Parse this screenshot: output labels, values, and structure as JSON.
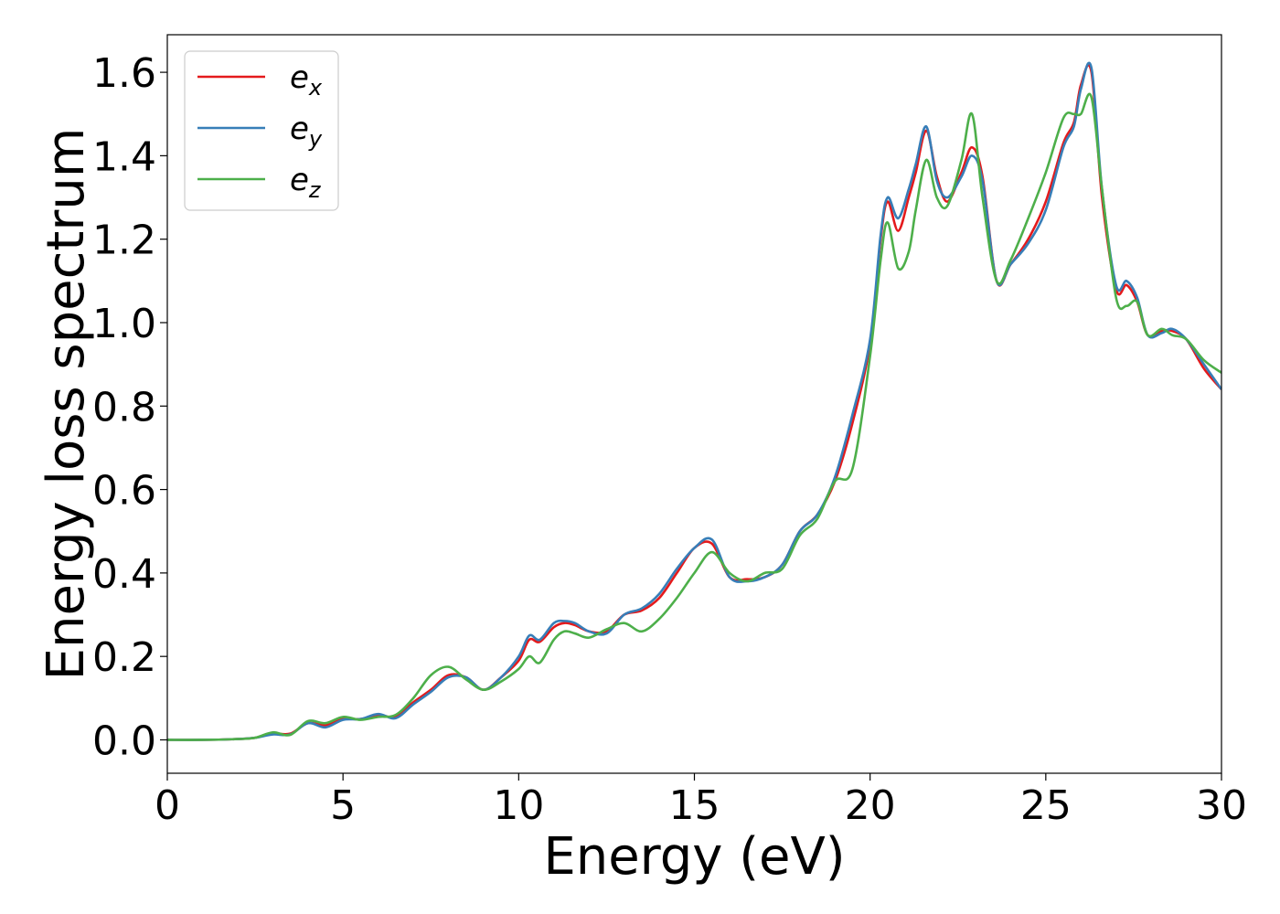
{
  "chart_data": {
    "type": "line",
    "title": "",
    "xlabel": "Energy (eV)",
    "ylabel": "Energy loss spectrum",
    "xlim": [
      0,
      30
    ],
    "ylim": [
      -0.08,
      1.69
    ],
    "xticks": [
      0,
      5,
      10,
      15,
      20,
      25,
      30
    ],
    "yticks": [
      0.0,
      0.2,
      0.4,
      0.6,
      0.8,
      1.0,
      1.2,
      1.4,
      1.6
    ],
    "xtick_labels": [
      "0",
      "5",
      "10",
      "15",
      "20",
      "25",
      "30"
    ],
    "ytick_labels": [
      "0.0",
      "0.2",
      "0.4",
      "0.6",
      "0.8",
      "1.0",
      "1.2",
      "1.4",
      "1.6"
    ],
    "grid": false,
    "legend_position": "top-left",
    "series": [
      {
        "name": "e",
        "subscript": "x",
        "color": "#e41a1c",
        "x": [
          0,
          1,
          2,
          2.5,
          3,
          3.5,
          4,
          4.5,
          5,
          5.5,
          6,
          6.5,
          7,
          7.5,
          8,
          8.5,
          9,
          9.5,
          10,
          10.3,
          10.6,
          11,
          11.3,
          11.6,
          12,
          12.5,
          13,
          13.5,
          14,
          14.5,
          15,
          15.5,
          16,
          16.5,
          17,
          17.5,
          18,
          18.5,
          19,
          19.5,
          20,
          20.3,
          20.5,
          20.8,
          21.1,
          21.3,
          21.6,
          21.9,
          22.2,
          22.6,
          22.9,
          23.2,
          23.6,
          24,
          24.5,
          25,
          25.5,
          25.8,
          26,
          26.3,
          26.6,
          27,
          27.3,
          27.6,
          27.9,
          28.3,
          28.6,
          29,
          29.5,
          30
        ],
        "y": [
          0,
          0,
          0.002,
          0.005,
          0.015,
          0.015,
          0.04,
          0.035,
          0.05,
          0.05,
          0.06,
          0.055,
          0.09,
          0.12,
          0.155,
          0.15,
          0.12,
          0.15,
          0.19,
          0.24,
          0.235,
          0.27,
          0.28,
          0.275,
          0.26,
          0.26,
          0.3,
          0.31,
          0.34,
          0.4,
          0.46,
          0.47,
          0.39,
          0.385,
          0.39,
          0.42,
          0.5,
          0.54,
          0.62,
          0.76,
          0.95,
          1.2,
          1.29,
          1.22,
          1.3,
          1.36,
          1.46,
          1.35,
          1.29,
          1.36,
          1.42,
          1.35,
          1.1,
          1.14,
          1.2,
          1.29,
          1.43,
          1.48,
          1.57,
          1.6,
          1.3,
          1.08,
          1.09,
          1.05,
          0.97,
          0.98,
          0.98,
          0.96,
          0.89,
          0.84
        ]
      },
      {
        "name": "e",
        "subscript": "y",
        "color": "#377eb8",
        "x": [
          0,
          1,
          2,
          2.5,
          3,
          3.5,
          4,
          4.5,
          5,
          5.5,
          6,
          6.5,
          7,
          7.5,
          8,
          8.5,
          9,
          9.5,
          10,
          10.3,
          10.6,
          11,
          11.3,
          11.6,
          12,
          12.5,
          13,
          13.5,
          14,
          14.5,
          15,
          15.5,
          16,
          16.5,
          17,
          17.5,
          18,
          18.5,
          19,
          19.5,
          20,
          20.3,
          20.5,
          20.8,
          21.1,
          21.3,
          21.6,
          21.9,
          22.2,
          22.6,
          22.9,
          23.2,
          23.6,
          24,
          24.5,
          25,
          25.5,
          25.8,
          26,
          26.3,
          26.6,
          27,
          27.3,
          27.6,
          27.9,
          28.3,
          28.6,
          29,
          29.5,
          30
        ],
        "y": [
          0,
          0,
          0.002,
          0.005,
          0.013,
          0.013,
          0.04,
          0.03,
          0.048,
          0.05,
          0.062,
          0.052,
          0.085,
          0.115,
          0.15,
          0.15,
          0.12,
          0.15,
          0.2,
          0.25,
          0.24,
          0.28,
          0.285,
          0.28,
          0.26,
          0.255,
          0.3,
          0.315,
          0.35,
          0.41,
          0.46,
          0.48,
          0.39,
          0.38,
          0.39,
          0.42,
          0.5,
          0.54,
          0.63,
          0.78,
          0.96,
          1.21,
          1.3,
          1.25,
          1.32,
          1.38,
          1.47,
          1.34,
          1.3,
          1.35,
          1.4,
          1.34,
          1.1,
          1.14,
          1.19,
          1.27,
          1.42,
          1.47,
          1.56,
          1.61,
          1.32,
          1.09,
          1.1,
          1.06,
          0.97,
          0.975,
          0.985,
          0.96,
          0.9,
          0.84
        ]
      },
      {
        "name": "e",
        "subscript": "z",
        "color": "#4daf4a",
        "x": [
          0,
          1,
          2,
          2.5,
          3,
          3.5,
          4,
          4.5,
          5,
          5.5,
          6,
          6.5,
          7,
          7.5,
          8,
          8.5,
          9,
          9.5,
          10,
          10.3,
          10.6,
          11,
          11.3,
          11.6,
          12,
          12.5,
          13,
          13.5,
          14,
          14.5,
          15,
          15.5,
          16,
          16.5,
          17,
          17.5,
          18,
          18.5,
          19,
          19.5,
          20,
          20.3,
          20.5,
          20.8,
          21.1,
          21.3,
          21.6,
          21.9,
          22.2,
          22.6,
          22.9,
          23.2,
          23.6,
          24,
          24.5,
          25,
          25.5,
          25.8,
          26,
          26.3,
          26.6,
          27,
          27.3,
          27.6,
          27.9,
          28.3,
          28.6,
          29,
          29.5,
          30
        ],
        "y": [
          0,
          0,
          0.002,
          0.005,
          0.018,
          0.012,
          0.045,
          0.04,
          0.055,
          0.048,
          0.055,
          0.06,
          0.1,
          0.155,
          0.175,
          0.145,
          0.12,
          0.14,
          0.17,
          0.2,
          0.185,
          0.24,
          0.26,
          0.255,
          0.245,
          0.265,
          0.28,
          0.26,
          0.29,
          0.34,
          0.4,
          0.45,
          0.4,
          0.38,
          0.4,
          0.41,
          0.49,
          0.53,
          0.62,
          0.65,
          0.92,
          1.15,
          1.24,
          1.13,
          1.17,
          1.27,
          1.39,
          1.3,
          1.28,
          1.39,
          1.5,
          1.3,
          1.1,
          1.15,
          1.25,
          1.36,
          1.49,
          1.5,
          1.5,
          1.54,
          1.32,
          1.06,
          1.04,
          1.05,
          0.97,
          0.985,
          0.97,
          0.96,
          0.91,
          0.88
        ]
      }
    ]
  }
}
